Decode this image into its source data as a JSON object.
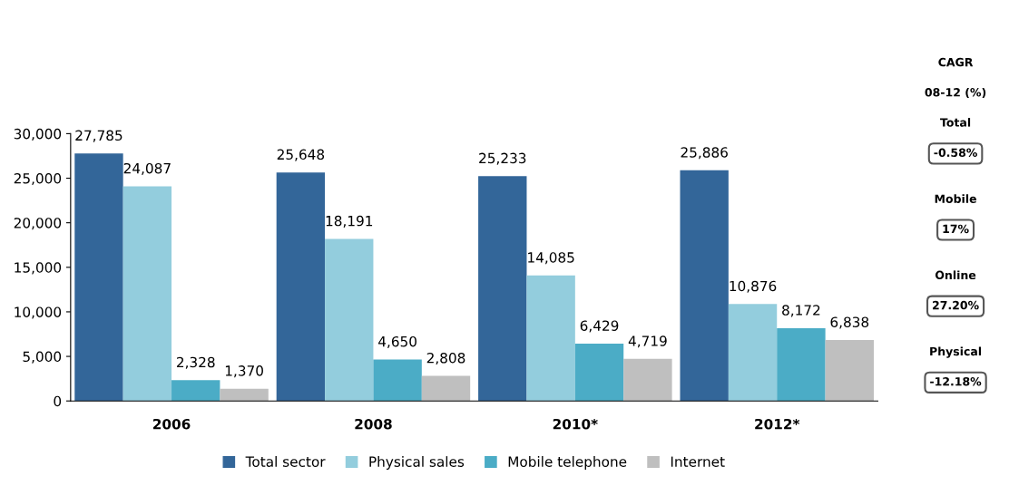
{
  "chart_data": {
    "type": "bar",
    "categories": [
      "2006",
      "2008",
      "2010*",
      "2012*"
    ],
    "series": [
      {
        "name": "Total sector",
        "color": "#336699",
        "values": [
          27785,
          25648,
          25233,
          25886
        ],
        "value_labels": [
          "27,785",
          "25,648",
          "25,233",
          "25,886"
        ]
      },
      {
        "name": "Physical sales",
        "color": "#93cddd",
        "values": [
          24087,
          18191,
          14085,
          10876
        ],
        "value_labels": [
          "24,087",
          "18,191",
          "14,085",
          "10,876"
        ]
      },
      {
        "name": "Mobile telephone",
        "color": "#4bacc6",
        "values": [
          2328,
          4650,
          6429,
          8172
        ],
        "value_labels": [
          "2,328",
          "4,650",
          "6,429",
          "8,172"
        ]
      },
      {
        "name": "Internet",
        "color": "#bfbfbf",
        "values": [
          1370,
          2808,
          4719,
          6838
        ],
        "value_labels": [
          "1,370",
          "2,808",
          "4,719",
          "6,838"
        ]
      }
    ],
    "ylim": [
      0,
      30000
    ],
    "yticks": [
      {
        "value": 0,
        "label": "0"
      },
      {
        "value": 5000,
        "label": "5,000"
      },
      {
        "value": 10000,
        "label": "10,000"
      },
      {
        "value": 15000,
        "label": "15,000"
      },
      {
        "value": 20000,
        "label": "20,000"
      },
      {
        "value": 25000,
        "label": "25,000"
      },
      {
        "value": 30000,
        "label": "30,000"
      }
    ],
    "grid": false,
    "legend": "bottom",
    "annotations": [
      "CAGR",
      "08-12 (%)",
      "Total",
      "-0.58%",
      "Mobile",
      "17%",
      "Online",
      "27.20%",
      "Physical",
      "-12.18%"
    ]
  }
}
